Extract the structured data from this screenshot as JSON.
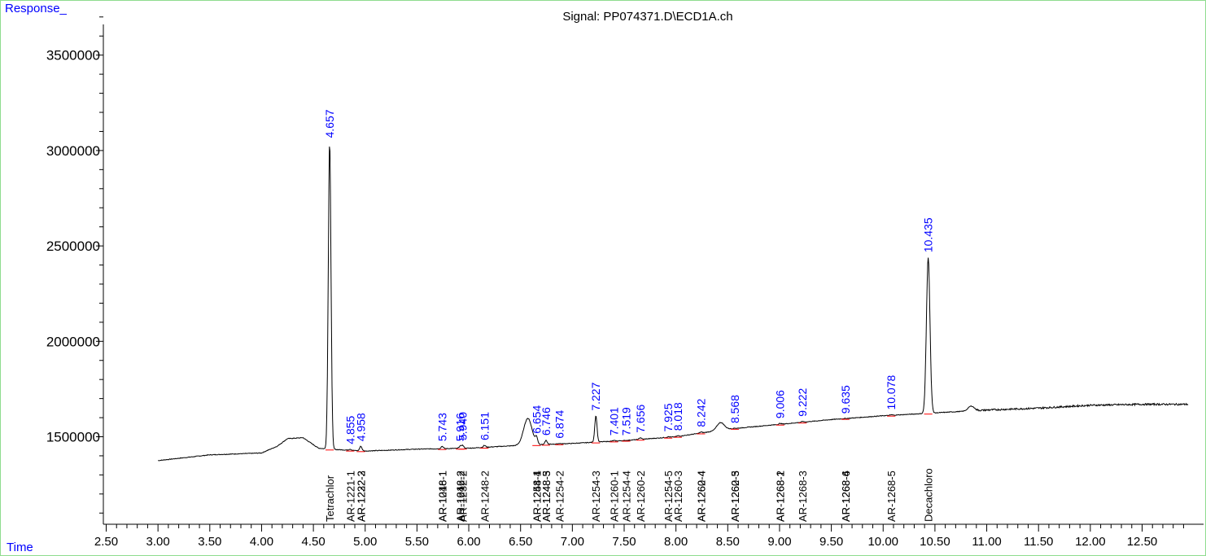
{
  "chart_data": {
    "type": "line",
    "title": "Signal: PP074371.D\\ECD1A.ch",
    "xlabel": "Time",
    "ylabel": "Response_",
    "xlim": [
      2.5,
      12.95
    ],
    "ylim": [
      1040000,
      3720000
    ],
    "x_ticks": [
      "2.50",
      "3.00",
      "3.50",
      "4.00",
      "4.50",
      "5.00",
      "5.50",
      "6.00",
      "6.50",
      "7.00",
      "7.50",
      "8.00",
      "8.50",
      "9.00",
      "9.50",
      "10.00",
      "10.50",
      "11.00",
      "11.50",
      "12.00",
      "12.50"
    ],
    "y_ticks": [
      "1500000",
      "2000000",
      "2500000",
      "3000000",
      "3500000"
    ],
    "baseline": [
      [
        3.0,
        1375000
      ],
      [
        3.5,
        1405000
      ],
      [
        4.0,
        1415000
      ],
      [
        4.15,
        1450000
      ],
      [
        4.25,
        1490000
      ],
      [
        4.4,
        1495000
      ],
      [
        4.55,
        1440000
      ],
      [
        4.65,
        1435000
      ],
      [
        5.0,
        1425000
      ],
      [
        5.5,
        1435000
      ],
      [
        6.0,
        1440000
      ],
      [
        6.5,
        1455000
      ],
      [
        7.0,
        1465000
      ],
      [
        7.5,
        1480000
      ],
      [
        8.0,
        1500000
      ],
      [
        8.5,
        1540000
      ],
      [
        9.0,
        1565000
      ],
      [
        9.5,
        1590000
      ],
      [
        10.0,
        1610000
      ],
      [
        10.5,
        1625000
      ],
      [
        11.0,
        1640000
      ],
      [
        11.5,
        1650000
      ],
      [
        12.0,
        1665000
      ],
      [
        12.5,
        1670000
      ],
      [
        12.95,
        1670000
      ]
    ],
    "broad_peaks": [
      [
        6.57,
        140000,
        0.04
      ],
      [
        8.43,
        40000,
        0.035
      ],
      [
        10.85,
        25000,
        0.03
      ]
    ],
    "peaks": [
      {
        "rt": "4.657",
        "height": 3040000
      },
      {
        "rt": "4.855",
        "height": 1435000
      },
      {
        "rt": "4.958",
        "height": 1450000
      },
      {
        "rt": "5.743",
        "height": 1450000
      },
      {
        "rt": "5.940",
        "height": 1455000
      },
      {
        "rt": "5.916",
        "height": 1450000
      },
      {
        "rt": "6.151",
        "height": 1455000
      },
      {
        "rt": "6.654",
        "height": 1490000
      },
      {
        "rt": "6.746",
        "height": 1480000
      },
      {
        "rt": "6.874",
        "height": 1465000
      },
      {
        "rt": "7.227",
        "height": 1610000
      },
      {
        "rt": "7.401",
        "height": 1480000
      },
      {
        "rt": "7.519",
        "height": 1480000
      },
      {
        "rt": "7.656",
        "height": 1495000
      },
      {
        "rt": "7.925",
        "height": 1500000
      },
      {
        "rt": "8.018",
        "height": 1505000
      },
      {
        "rt": "8.242",
        "height": 1525000
      },
      {
        "rt": "8.568",
        "height": 1545000
      },
      {
        "rt": "9.006",
        "height": 1570000
      },
      {
        "rt": "9.222",
        "height": 1580000
      },
      {
        "rt": "9.635",
        "height": 1595000
      },
      {
        "rt": "10.078",
        "height": 1615000
      },
      {
        "rt": "10.435",
        "height": 2440000
      }
    ],
    "compound_labels": [
      {
        "label": "Tetrachlor",
        "x": 4.657
      },
      {
        "label": "AR-1221-1",
        "x": 4.855
      },
      {
        "label": "AR-1222-2",
        "x": 4.958
      },
      {
        "label": "AR-1232-3",
        "x": 4.958
      },
      {
        "label": "AR-1016-1",
        "x": 5.743
      },
      {
        "label": "AR-1248-1",
        "x": 5.743
      },
      {
        "label": "AR-1016-2",
        "x": 5.916
      },
      {
        "label": "AR-1242-2",
        "x": 5.916
      },
      {
        "label": "AR-1232-2",
        "x": 5.94
      },
      {
        "label": "AR-1248-2",
        "x": 6.151
      },
      {
        "label": "AR-1248-4",
        "x": 6.654
      },
      {
        "label": "AR-1254-1",
        "x": 6.654
      },
      {
        "label": "AR-1248-3",
        "x": 6.746
      },
      {
        "label": "AR-1248-5",
        "x": 6.746
      },
      {
        "label": "AR-1254-2",
        "x": 6.874
      },
      {
        "label": "AR-1254-3",
        "x": 7.227
      },
      {
        "label": "AR-1260-1",
        "x": 7.401
      },
      {
        "label": "AR-1254-4",
        "x": 7.519
      },
      {
        "label": "AR-1260-2",
        "x": 7.656
      },
      {
        "label": "AR-1254-5",
        "x": 7.925
      },
      {
        "label": "AR-1260-3",
        "x": 8.018
      },
      {
        "label": "AR-1260-4",
        "x": 8.242
      },
      {
        "label": "AR-1262-4",
        "x": 8.242
      },
      {
        "label": "AR-1260-5",
        "x": 8.568
      },
      {
        "label": "AR-1262-3",
        "x": 8.568
      },
      {
        "label": "AR-1268-1",
        "x": 9.006
      },
      {
        "label": "AR-1268-2",
        "x": 9.006
      },
      {
        "label": "AR-1268-3",
        "x": 9.222
      },
      {
        "label": "AR-1268-4",
        "x": 9.635
      },
      {
        "label": "AR-1268-6",
        "x": 9.635
      },
      {
        "label": "AR-1268-5",
        "x": 10.078
      },
      {
        "label": "Decachloro",
        "x": 10.435
      }
    ],
    "colors": {
      "axis": "#000000",
      "trace": "#000000",
      "peak_label": "#0000ff",
      "axis_title": "#0000ff",
      "baseline_marker": "#ff0000",
      "compound_label": "#000000"
    },
    "grid": false
  }
}
